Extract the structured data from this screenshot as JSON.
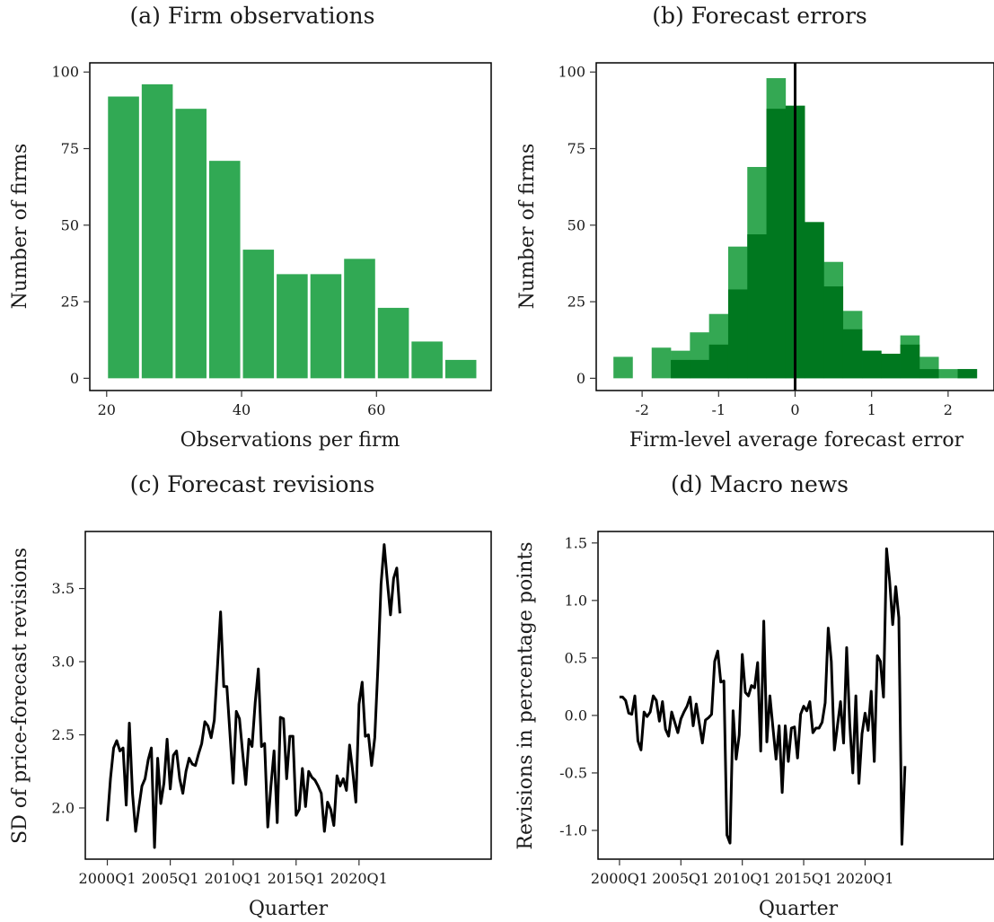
{
  "chart_data": [
    {
      "type": "bar",
      "title": "(a) Firm observations",
      "xlabel": "Observations per firm",
      "ylabel": "Number of firms",
      "x_ticks": [
        20,
        40,
        60
      ],
      "y_ticks": [
        0,
        25,
        50,
        75,
        100
      ],
      "xlim": [
        17.5,
        77
      ],
      "ylim": [
        -4,
        103
      ],
      "bin_width": 5,
      "bar_color": "#31a954",
      "bins": [
        {
          "start": 20,
          "end": 25,
          "value": 92
        },
        {
          "start": 25,
          "end": 30,
          "value": 96
        },
        {
          "start": 30,
          "end": 35,
          "value": 88
        },
        {
          "start": 35,
          "end": 40,
          "value": 71
        },
        {
          "start": 40,
          "end": 45,
          "value": 42
        },
        {
          "start": 45,
          "end": 50,
          "value": 34
        },
        {
          "start": 50,
          "end": 55,
          "value": 34
        },
        {
          "start": 55,
          "end": 60,
          "value": 39
        },
        {
          "start": 60,
          "end": 65,
          "value": 23
        },
        {
          "start": 65,
          "end": 70,
          "value": 12
        },
        {
          "start": 70,
          "end": 75,
          "value": 6
        }
      ]
    },
    {
      "type": "bar",
      "title": "(b) Forecast errors",
      "xlabel": "Firm-level average forecast error",
      "ylabel": "Number of firms",
      "x_ticks": [
        -2,
        -1,
        0,
        1,
        2
      ],
      "x_tick_labels": [
        "-2",
        "-1",
        "0",
        "1",
        "2"
      ],
      "y_ticks": [
        0,
        25,
        50,
        75,
        100
      ],
      "xlim": [
        -2.6,
        2.6
      ],
      "ylim": [
        -4,
        103
      ],
      "bin_width": 0.25,
      "reference_line_x": 0,
      "series": [
        {
          "color": "#34a853",
          "bins": [
            {
              "start": -2.375,
              "value": 7
            },
            {
              "start": -1.875,
              "value": 10
            },
            {
              "start": -1.625,
              "value": 9
            },
            {
              "start": -1.375,
              "value": 15
            },
            {
              "start": -1.125,
              "value": 21
            },
            {
              "start": -0.875,
              "value": 43
            },
            {
              "start": -0.625,
              "value": 69
            },
            {
              "start": -0.375,
              "value": 98
            },
            {
              "start": -0.125,
              "value": 89
            },
            {
              "start": 0.125,
              "value": 51
            },
            {
              "start": 0.375,
              "value": 38
            },
            {
              "start": 0.625,
              "value": 22
            },
            {
              "start": 0.875,
              "value": 9
            },
            {
              "start": 1.125,
              "value": 8
            },
            {
              "start": 1.375,
              "value": 14
            },
            {
              "start": 1.625,
              "value": 7
            },
            {
              "start": 1.875,
              "value": 3
            },
            {
              "start": 2.125,
              "value": 3
            }
          ]
        },
        {
          "color": "#00781f",
          "bins": [
            {
              "start": -1.625,
              "value": 6
            },
            {
              "start": -1.375,
              "value": 6
            },
            {
              "start": -1.125,
              "value": 11
            },
            {
              "start": -0.875,
              "value": 29
            },
            {
              "start": -0.625,
              "value": 47
            },
            {
              "start": -0.375,
              "value": 88
            },
            {
              "start": -0.125,
              "value": 89
            },
            {
              "start": 0.125,
              "value": 51
            },
            {
              "start": 0.375,
              "value": 30
            },
            {
              "start": 0.625,
              "value": 16
            },
            {
              "start": 0.875,
              "value": 9
            },
            {
              "start": 1.125,
              "value": 8
            },
            {
              "start": 1.375,
              "value": 11
            },
            {
              "start": 1.625,
              "value": 3
            },
            {
              "start": 2.125,
              "value": 3
            }
          ]
        }
      ]
    },
    {
      "type": "line",
      "title": "(c) Forecast revisions",
      "xlabel": "Quarter",
      "ylabel": "SD of price-forecast revisions",
      "x_ticks": [
        "2000Q1",
        "2005Q1",
        "2010Q1",
        "2015Q1",
        "2020Q1"
      ],
      "y_ticks": [
        2.0,
        2.5,
        3.0,
        3.5
      ],
      "y_tick_labels": [
        "2.0",
        "2.5",
        "3.0",
        "3.5"
      ],
      "xlim_index": [
        -7,
        122
      ],
      "ylim": [
        1.65,
        3.89
      ],
      "line_color": "#000000",
      "values": [
        1.91,
        2.2,
        2.41,
        2.46,
        2.39,
        2.41,
        2.02,
        2.58,
        2.1,
        1.84,
        2.0,
        2.15,
        2.2,
        2.33,
        2.41,
        1.73,
        2.34,
        2.03,
        2.17,
        2.47,
        2.13,
        2.36,
        2.39,
        2.2,
        2.1,
        2.25,
        2.34,
        2.3,
        2.29,
        2.37,
        2.44,
        2.59,
        2.56,
        2.48,
        2.6,
        2.96,
        3.34,
        2.83,
        2.83,
        2.5,
        2.17,
        2.66,
        2.61,
        2.38,
        2.16,
        2.47,
        2.42,
        2.72,
        2.95,
        2.42,
        2.44,
        1.87,
        2.15,
        2.39,
        1.9,
        2.62,
        2.61,
        2.2,
        2.49,
        2.49,
        1.95,
        1.99,
        2.27,
        2.01,
        2.25,
        2.21,
        2.19,
        2.15,
        2.1,
        1.84,
        2.04,
        1.99,
        1.88,
        2.22,
        2.15,
        2.2,
        2.12,
        2.43,
        2.25,
        2.04,
        2.71,
        2.86,
        2.49,
        2.5,
        2.29,
        2.48,
        2.96,
        3.53,
        3.8,
        3.55,
        3.32,
        3.57,
        3.64,
        3.33
      ]
    },
    {
      "type": "line",
      "title": "(d) Macro news",
      "xlabel": "Quarter",
      "ylabel": "Revisions in percentage points",
      "x_ticks": [
        "2000Q1",
        "2005Q1",
        "2010Q1",
        "2015Q1",
        "2020Q1"
      ],
      "y_ticks": [
        -1.0,
        -0.5,
        0.0,
        0.5,
        1.0,
        1.5
      ],
      "y_tick_labels": [
        "-1.0",
        "-0.5",
        "0.0",
        "0.5",
        "1.0",
        "1.5"
      ],
      "xlim_index": [
        -7,
        122
      ],
      "ylim": [
        -1.25,
        1.6
      ],
      "line_color": "#000000",
      "values": [
        0.16,
        0.16,
        0.13,
        0.02,
        0.01,
        0.17,
        -0.22,
        -0.3,
        0.03,
        -0.01,
        0.03,
        0.17,
        0.13,
        -0.05,
        0.12,
        -0.12,
        -0.18,
        0.03,
        -0.06,
        -0.15,
        -0.03,
        0.03,
        0.08,
        0.16,
        -0.09,
        0.1,
        -0.07,
        -0.24,
        -0.04,
        -0.02,
        0.01,
        0.47,
        0.56,
        0.29,
        0.3,
        -1.04,
        -1.11,
        0.04,
        -0.38,
        -0.17,
        0.53,
        0.2,
        0.17,
        0.26,
        0.24,
        0.46,
        -0.31,
        0.82,
        -0.23,
        0.17,
        -0.11,
        -0.38,
        -0.09,
        -0.67,
        -0.09,
        -0.4,
        -0.11,
        -0.1,
        -0.37,
        0.01,
        0.08,
        0.04,
        0.12,
        -0.15,
        -0.11,
        -0.11,
        -0.06,
        0.11,
        0.76,
        0.47,
        -0.3,
        -0.09,
        0.12,
        -0.24,
        0.59,
        -0.07,
        -0.5,
        0.17,
        -0.59,
        -0.16,
        0.02,
        -0.13,
        0.21,
        -0.4,
        0.52,
        0.47,
        0.16,
        1.45,
        1.17,
        0.79,
        1.12,
        0.85,
        -1.12,
        -0.44
      ]
    }
  ]
}
